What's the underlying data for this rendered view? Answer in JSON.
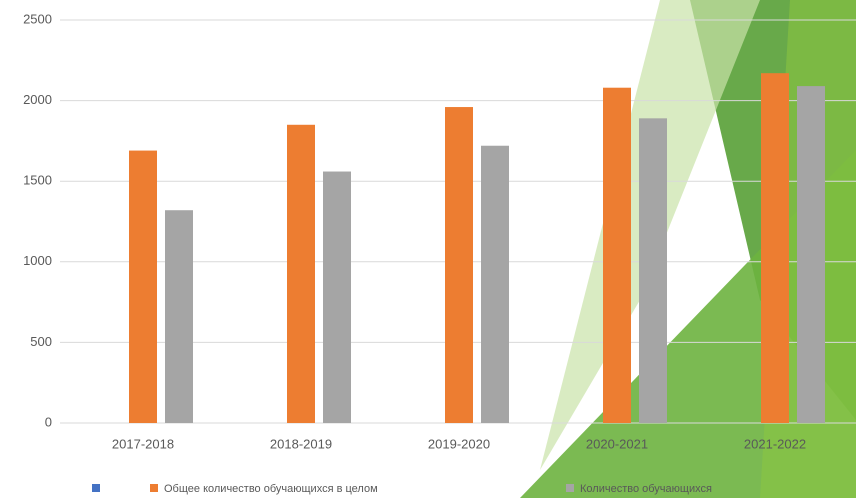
{
  "chart_data": {
    "type": "bar",
    "categories": [
      "2017-2018",
      "2018-2019",
      "2019-2020",
      "2020-2021",
      "2021-2022"
    ],
    "series": [
      {
        "name": "Общее количество обучающихся в целом",
        "color": "#ed7d31",
        "values": [
          1690,
          1850,
          1960,
          2080,
          2170
        ]
      },
      {
        "name": "Количество обучающихся",
        "color": "#a5a5a5",
        "values": [
          1320,
          1560,
          1720,
          1890,
          2090
        ]
      }
    ],
    "ylim": [
      0,
      2500
    ],
    "yticks": [
      0,
      500,
      1000,
      1500,
      2000,
      2500
    ],
    "grid": true
  }
}
